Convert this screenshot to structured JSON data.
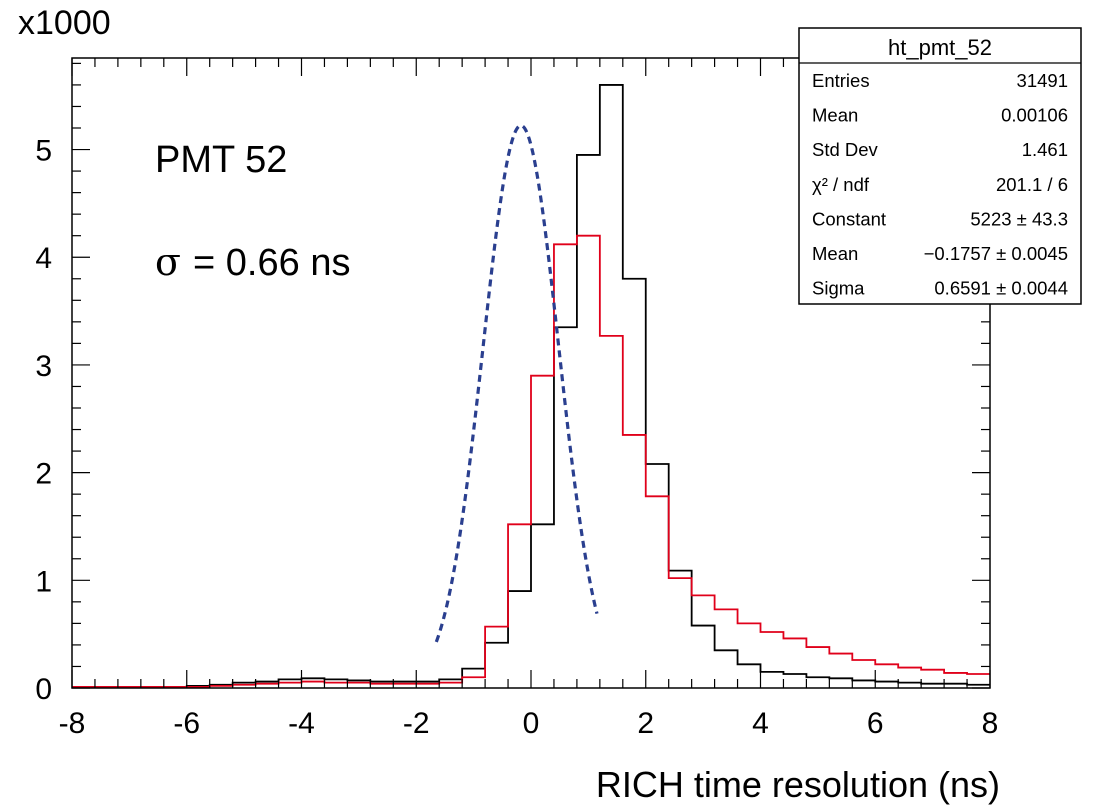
{
  "chart_data": {
    "type": "line",
    "x_axis": {
      "label": "RICH time resolution (ns)",
      "range": [
        -8,
        8
      ],
      "ticks": [
        "-8",
        "-6",
        "-4",
        "-2",
        "0",
        "2",
        "4",
        "6",
        "8"
      ]
    },
    "y_axis": {
      "multiplier": "x1000",
      "range": [
        0,
        5.85
      ],
      "ticks": [
        "0",
        "1",
        "2",
        "3",
        "4",
        "5"
      ]
    },
    "annotations": {
      "pmt": "PMT 52",
      "sigma_symbol": "σ",
      "sigma_text": "= 0.66 ns"
    },
    "stats_box": {
      "title": "ht_pmt_52",
      "rows": [
        {
          "label": "Entries",
          "value": "31491"
        },
        {
          "label": "Mean",
          "value": "0.00106"
        },
        {
          "label": "Std Dev",
          "value": "1.461"
        },
        {
          "label": "χ² / ndf",
          "value": "201.1 / 6"
        },
        {
          "label": "Constant",
          "value": "5223 ± 43.3"
        },
        {
          "label": "Mean",
          "value": "−0.1757 ± 0.0045"
        },
        {
          "label": "Sigma",
          "value": "0.6591 ± 0.0044"
        }
      ]
    },
    "series": [
      {
        "color": "#000000",
        "style": "step",
        "bin_width": 0.4,
        "x_start": -8,
        "values": [
          0.01,
          0.01,
          0.01,
          0.01,
          0.01,
          0.02,
          0.03,
          0.05,
          0.06,
          0.08,
          0.09,
          0.08,
          0.07,
          0.06,
          0.06,
          0.06,
          0.08,
          0.18,
          0.42,
          0.9,
          1.52,
          3.35,
          4.95,
          5.6,
          3.8,
          2.08,
          1.09,
          0.58,
          0.35,
          0.22,
          0.15,
          0.13,
          0.1,
          0.09,
          0.07,
          0.06,
          0.05,
          0.04,
          0.04,
          0.03
        ]
      },
      {
        "color": "#e0001a",
        "style": "step",
        "bin_width": 0.4,
        "x_start": -8,
        "values": [
          0.01,
          0.01,
          0.01,
          0.01,
          0.01,
          0.01,
          0.02,
          0.03,
          0.04,
          0.05,
          0.06,
          0.05,
          0.05,
          0.04,
          0.04,
          0.04,
          0.05,
          0.1,
          0.57,
          1.52,
          2.9,
          4.12,
          4.2,
          3.27,
          2.35,
          1.78,
          1.02,
          0.86,
          0.73,
          0.6,
          0.52,
          0.46,
          0.38,
          0.32,
          0.26,
          0.22,
          0.19,
          0.17,
          0.14,
          0.13
        ]
      },
      {
        "color": "#2a3f8f",
        "style": "gaussian-fit",
        "constant": 5.223,
        "mean": -0.1757,
        "sigma": 0.6591,
        "x_range": [
          -1.65,
          1.15
        ]
      }
    ]
  }
}
